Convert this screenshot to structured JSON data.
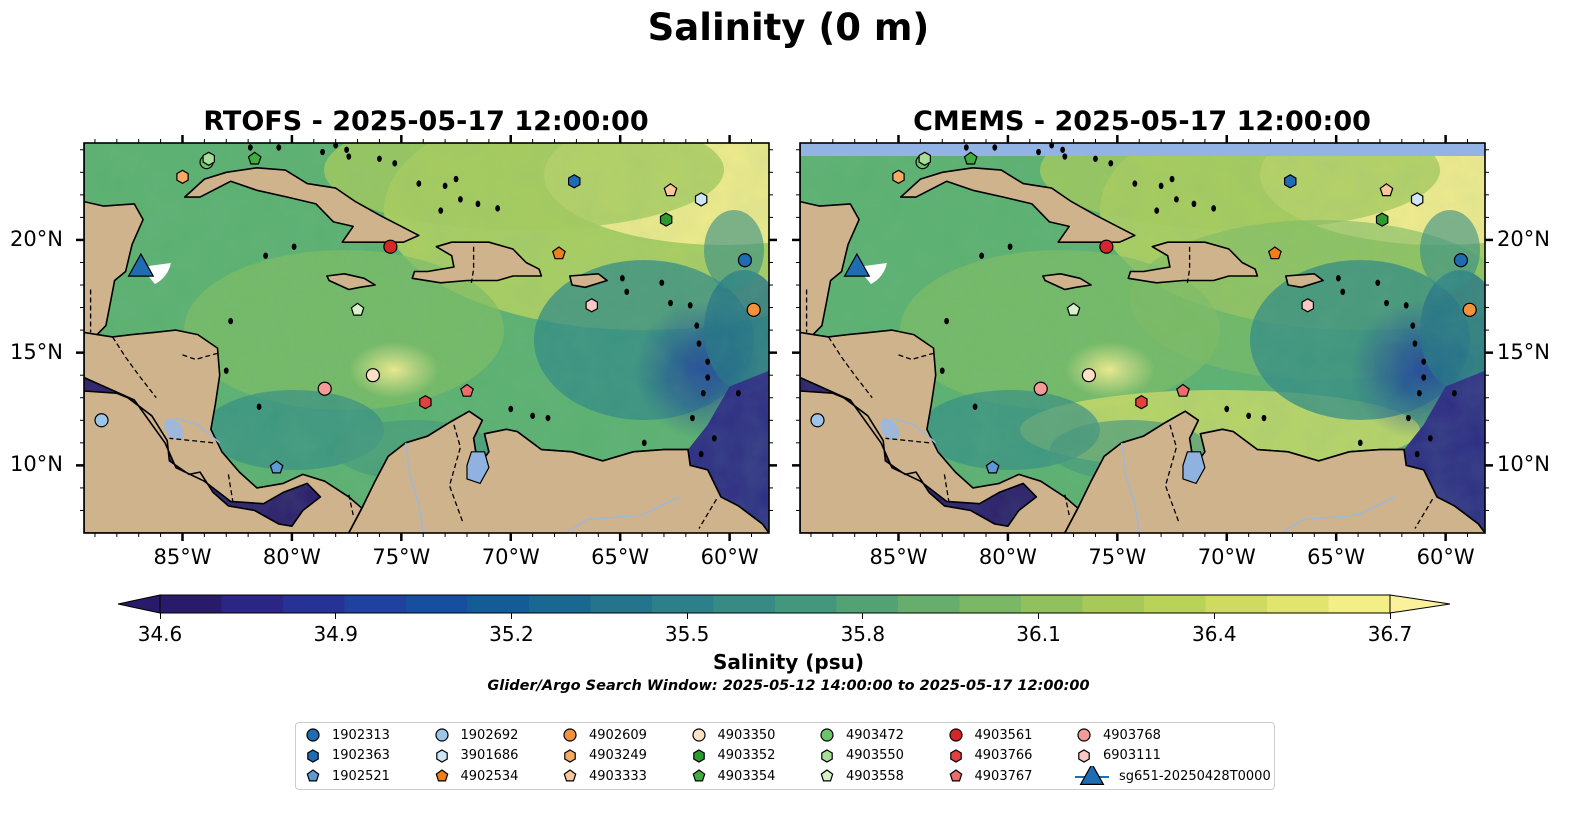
{
  "title": "Salinity (0 m)",
  "panels": [
    {
      "id": "rtofs",
      "title": "RTOFS - 2025-05-17 12:00:00"
    },
    {
      "id": "cmems",
      "title": "CMEMS - 2025-05-17 12:00:00"
    }
  ],
  "lon_ticks": [
    "85°W",
    "80°W",
    "75°W",
    "70°W",
    "65°W",
    "60°W"
  ],
  "lat_ticks": [
    "20°N",
    "15°N",
    "10°N"
  ],
  "colorbar": {
    "label": "Salinity (psu)",
    "min": 34.6,
    "max": 36.7,
    "ticks": [
      "34.6",
      "34.9",
      "35.2",
      "35.5",
      "35.8",
      "36.1",
      "36.4",
      "36.7"
    ],
    "colors": [
      "#2a1b6a",
      "#2b2585",
      "#273296",
      "#1f41a0",
      "#164f9f",
      "#145c98",
      "#196891",
      "#23748c",
      "#2d8089",
      "#378b84",
      "#43977d",
      "#53a276",
      "#67ad6e",
      "#7bb865",
      "#91c15c",
      "#a6c958",
      "#bbd259",
      "#cedb60",
      "#e1e56e",
      "#f3ee85",
      "#fbf09b"
    ]
  },
  "subtitle": "Glider/Argo Search Window: 2025-05-12 14:00:00 to 2025-05-17 12:00:00",
  "colors": {
    "land": "#cfb38c",
    "water_lake": "#8fb2e0",
    "cmems_band": "#93b3e5"
  },
  "legend": [
    {
      "label": "1902313",
      "marker": "circle",
      "color": "#1f6cb3"
    },
    {
      "label": "1902363",
      "marker": "hexagon",
      "color": "#1f6cb3"
    },
    {
      "label": "1902521",
      "marker": "pentagon",
      "color": "#5d9ad4"
    },
    {
      "label": "1902692",
      "marker": "circle",
      "color": "#9cc5e8"
    },
    {
      "label": "3901686",
      "marker": "hexagon",
      "color": "#cfe6f7"
    },
    {
      "label": "4902534",
      "marker": "pentagon",
      "color": "#f07e1b"
    },
    {
      "label": "4902609",
      "marker": "circle",
      "color": "#f4913c"
    },
    {
      "label": "4903249",
      "marker": "hexagon",
      "color": "#f6aa63"
    },
    {
      "label": "4903333",
      "marker": "pentagon",
      "color": "#f9c89a"
    },
    {
      "label": "4903350",
      "marker": "circle",
      "color": "#fce1c5"
    },
    {
      "label": "4903352",
      "marker": "hexagon",
      "color": "#2c9a2e"
    },
    {
      "label": "4903354",
      "marker": "pentagon",
      "color": "#3fae3f"
    },
    {
      "label": "4903472",
      "marker": "circle",
      "color": "#6ac46a"
    },
    {
      "label": "4903550",
      "marker": "hexagon",
      "color": "#a6dd98"
    },
    {
      "label": "4903558",
      "marker": "pentagon",
      "color": "#d6f2c9"
    },
    {
      "label": "4903561",
      "marker": "circle",
      "color": "#d62728"
    },
    {
      "label": "4903766",
      "marker": "hexagon",
      "color": "#e3413f"
    },
    {
      "label": "4903767",
      "marker": "pentagon",
      "color": "#ee6b6b"
    },
    {
      "label": "4903768",
      "marker": "circle",
      "color": "#f29b98"
    },
    {
      "label": "6903111",
      "marker": "hexagon",
      "color": "#fbc8c4"
    },
    {
      "label": "sg651-20250428T0000",
      "marker": "triangle",
      "color": "#1f6cb3"
    }
  ],
  "floats": [
    {
      "id": "1902313",
      "lon": -59.3,
      "lat": 19.1
    },
    {
      "id": "1902363",
      "lon": -67.1,
      "lat": 22.6
    },
    {
      "id": "1902521",
      "lon": -80.7,
      "lat": 9.9
    },
    {
      "id": "1902692",
      "lon": -88.7,
      "lat": 12.0
    },
    {
      "id": "3901686",
      "lon": -61.3,
      "lat": 21.8
    },
    {
      "id": "4902534",
      "lon": -67.8,
      "lat": 19.4
    },
    {
      "id": "4902609",
      "lon": -58.9,
      "lat": 16.9
    },
    {
      "id": "4903249",
      "lon": -85.0,
      "lat": 22.8
    },
    {
      "id": "4903333",
      "lon": -62.7,
      "lat": 22.2
    },
    {
      "id": "4903350",
      "lon": -76.3,
      "lat": 14.0
    },
    {
      "id": "4903352",
      "lon": -62.9,
      "lat": 20.9
    },
    {
      "id": "4903354",
      "lon": -81.7,
      "lat": 23.6
    },
    {
      "id": "4903472",
      "lon": -83.9,
      "lat": 23.6
    },
    {
      "id": "4903550",
      "lon": -83.8,
      "lat": 23.6
    },
    {
      "id": "4903558",
      "lon": -77.0,
      "lat": 16.9
    },
    {
      "id": "4903561",
      "lon": -75.5,
      "lat": 19.7
    },
    {
      "id": "4903766",
      "lon": -73.9,
      "lat": 12.8
    },
    {
      "id": "4903767",
      "lon": -72.0,
      "lat": 13.3
    },
    {
      "id": "4903768",
      "lon": -78.5,
      "lat": 13.4
    },
    {
      "id": "6903111",
      "lon": -66.3,
      "lat": 17.1
    },
    {
      "id": "sg651-20250428T0000",
      "lon": -86.9,
      "lat": 18.8
    }
  ]
}
